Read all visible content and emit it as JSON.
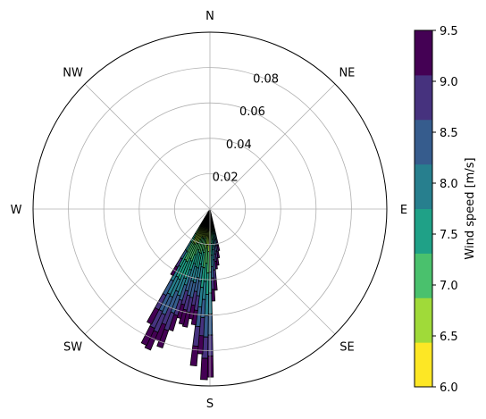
{
  "chart_data": {
    "type": "polar-stacked-bar",
    "title": "",
    "directions": [
      "N",
      "NE",
      "E",
      "SE",
      "S",
      "SW",
      "W",
      "NW"
    ],
    "radial_ticks": [
      "0.02",
      "0.04",
      "0.06",
      "0.08"
    ],
    "radial_tick_values": [
      0.02,
      0.04,
      0.06,
      0.08
    ],
    "rmax": 0.1,
    "colorbar": {
      "label": "Wind speed [m/s]",
      "tick_labels": [
        "6.0",
        "6.5",
        "7.0",
        "7.5",
        "8.0",
        "8.5",
        "9.0",
        "9.5"
      ],
      "bin_edges": [
        6.0,
        6.5,
        7.0,
        7.5,
        8.0,
        8.5,
        9.0,
        9.5
      ],
      "colors": [
        "#fde725",
        "#a0da39",
        "#4ac16d",
        "#1fa187",
        "#277f8e",
        "#365c8d",
        "#46327e",
        "#440154"
      ]
    },
    "bars_direction_deg": [
      168,
      170,
      172,
      174,
      176,
      178,
      180,
      182,
      184,
      186,
      188,
      190,
      192,
      194,
      196,
      198,
      200,
      202,
      204,
      206,
      208,
      210
    ],
    "bars_total_frequency": [
      0.024,
      0.028,
      0.032,
      0.034,
      0.046,
      0.052,
      0.095,
      0.0965,
      0.082,
      0.089,
      0.066,
      0.063,
      0.068,
      0.067,
      0.064,
      0.072,
      0.083,
      0.08,
      0.0865,
      0.085,
      0.073,
      0.043
    ]
  }
}
